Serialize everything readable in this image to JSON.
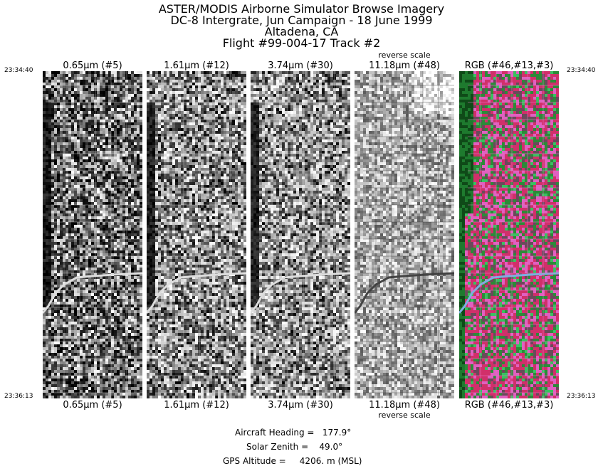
{
  "header": {
    "line1": "ASTER/MODIS Airborne Simulator Browse Imagery",
    "line2": "DC-8 Intergrate, Jun Campaign - 18 June 1999",
    "line3": "Altadena, CA",
    "line4": "Flight #99-004-17 Track #2"
  },
  "times": {
    "start": "23:34:40",
    "end": "23:36:13"
  },
  "bands": [
    {
      "label": "0.65µm (#5)",
      "note": "",
      "style": "vis"
    },
    {
      "label": "1.61µm (#12)",
      "note": "",
      "style": "swir"
    },
    {
      "label": "3.74µm (#30)",
      "note": "",
      "style": "mwir"
    },
    {
      "label": "11.18µm (#48)",
      "note": "reverse scale",
      "style": "tir"
    },
    {
      "label": "RGB (#46,#13,#3)",
      "note": "",
      "style": "rgb"
    }
  ],
  "footer": {
    "heading": "Aircraft Heading =   177.9°",
    "zenith": "Solar Zenith =    49.0°",
    "altitude": "GPS Altitude =     4206. m (MSL)"
  }
}
